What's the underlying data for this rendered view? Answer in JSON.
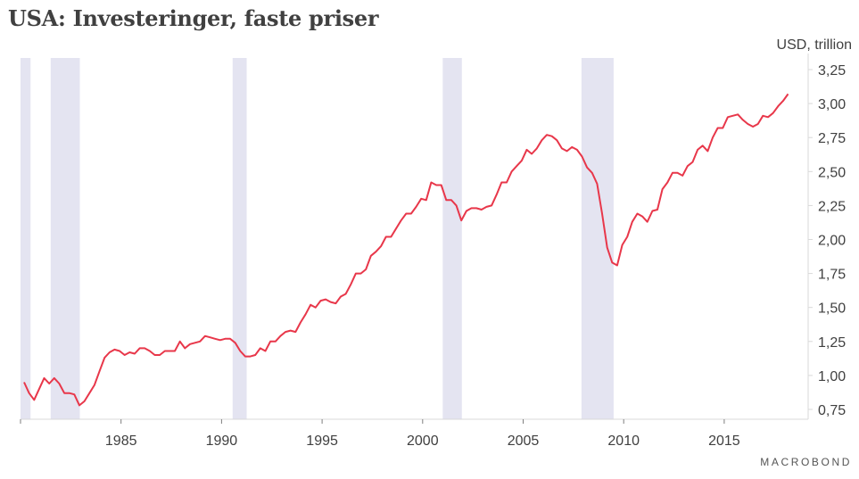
{
  "chart_data": {
    "type": "line",
    "title": "USA: Investeringer, faste priser",
    "ylabel": "USD, trillion",
    "xlabel": "",
    "source_brand": "MACROBOND",
    "xlim": [
      1980,
      2019.2
    ],
    "ylim": [
      0.67,
      3.33
    ],
    "x_ticks": [
      1980,
      1985,
      1990,
      1995,
      2000,
      2005,
      2010,
      2015,
      2020
    ],
    "x_tick_labels": [
      "1985",
      "1990",
      "1995",
      "2000",
      "2005",
      "2010",
      "2015"
    ],
    "x_tick_label_values": [
      1985,
      1990,
      1995,
      2000,
      2005,
      2010,
      2015
    ],
    "y_ticks": [
      0.75,
      1.0,
      1.25,
      1.5,
      1.75,
      2.0,
      2.25,
      2.5,
      2.75,
      3.0,
      3.25
    ],
    "y_tick_labels": [
      "0,75",
      "1,00",
      "1,25",
      "1,50",
      "1,75",
      "2,00",
      "2,25",
      "2,50",
      "2,75",
      "3,00",
      "3,25"
    ],
    "grid": false,
    "legend": "none",
    "colors": {
      "line": "#e8374a",
      "recession": "#e4e4f1",
      "axis": "#d9d9d9",
      "text": "#404040"
    },
    "recessions": [
      [
        1980.0,
        1980.5
      ],
      [
        1981.5,
        1982.95
      ],
      [
        1990.55,
        1991.25
      ],
      [
        2001.0,
        2001.95
      ],
      [
        2007.9,
        2009.5
      ]
    ],
    "series": [
      {
        "name": "USA: Investeringer, faste priser",
        "x_start": 1980.0,
        "x_step": 0.25,
        "values": [
          0.95,
          0.87,
          0.82,
          0.9,
          0.98,
          0.94,
          0.98,
          0.94,
          0.87,
          0.87,
          0.86,
          0.78,
          0.81,
          0.87,
          0.93,
          1.03,
          1.13,
          1.17,
          1.19,
          1.18,
          1.15,
          1.17,
          1.16,
          1.2,
          1.2,
          1.18,
          1.15,
          1.15,
          1.18,
          1.18,
          1.18,
          1.25,
          1.2,
          1.23,
          1.24,
          1.25,
          1.29,
          1.28,
          1.27,
          1.26,
          1.27,
          1.27,
          1.24,
          1.18,
          1.14,
          1.14,
          1.15,
          1.2,
          1.18,
          1.25,
          1.25,
          1.29,
          1.32,
          1.33,
          1.32,
          1.39,
          1.45,
          1.52,
          1.5,
          1.55,
          1.56,
          1.54,
          1.53,
          1.58,
          1.6,
          1.67,
          1.75,
          1.75,
          1.78,
          1.88,
          1.91,
          1.95,
          2.02,
          2.02,
          2.08,
          2.14,
          2.19,
          2.19,
          2.24,
          2.3,
          2.29,
          2.42,
          2.4,
          2.4,
          2.29,
          2.29,
          2.25,
          2.14,
          2.21,
          2.23,
          2.23,
          2.22,
          2.24,
          2.25,
          2.33,
          2.42,
          2.42,
          2.5,
          2.54,
          2.58,
          2.66,
          2.63,
          2.67,
          2.73,
          2.77,
          2.76,
          2.73,
          2.67,
          2.65,
          2.68,
          2.66,
          2.61,
          2.53,
          2.49,
          2.41,
          2.19,
          1.94,
          1.83,
          1.81,
          1.96,
          2.02,
          2.13,
          2.19,
          2.17,
          2.13,
          2.21,
          2.22,
          2.37,
          2.42,
          2.49,
          2.49,
          2.47,
          2.54,
          2.57,
          2.66,
          2.69,
          2.65,
          2.75,
          2.82,
          2.82,
          2.9,
          2.91,
          2.92,
          2.88,
          2.85,
          2.83,
          2.85,
          2.91,
          2.9,
          2.93,
          2.98,
          3.02,
          3.07
        ]
      }
    ]
  }
}
